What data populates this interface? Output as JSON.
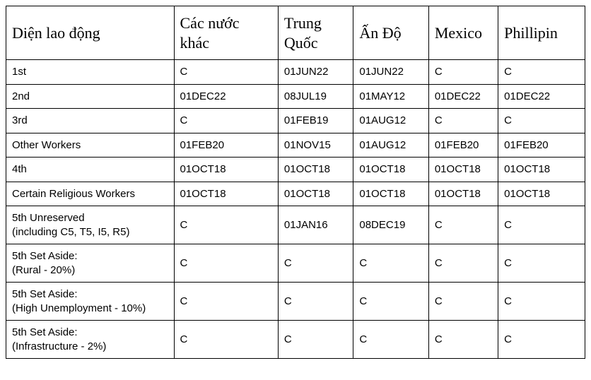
{
  "table": {
    "columns": [
      "Diện lao động",
      "Các nước khác",
      "Trung Quốc",
      "Ấn Độ",
      "Mexico",
      "Phillipin"
    ],
    "rows": [
      [
        "1st",
        "C",
        "01JUN22",
        "01JUN22",
        "C",
        "C"
      ],
      [
        "2nd",
        "01DEC22",
        "08JUL19",
        "01MAY12",
        "01DEC22",
        "01DEC22"
      ],
      [
        "3rd",
        "C",
        "01FEB19",
        "01AUG12",
        "C",
        "C"
      ],
      [
        "Other Workers",
        "01FEB20",
        "01NOV15",
        "01AUG12",
        "01FEB20",
        "01FEB20"
      ],
      [
        "4th",
        "01OCT18",
        "01OCT18",
        "01OCT18",
        "01OCT18",
        "01OCT18"
      ],
      [
        "Certain Religious Workers",
        "01OCT18",
        "01OCT18",
        "01OCT18",
        "01OCT18",
        "01OCT18"
      ],
      [
        "5th Unreserved\n(including C5, T5, I5, R5)",
        "C",
        "01JAN16",
        "08DEC19",
        "C",
        "C"
      ],
      [
        "5th Set Aside:\n(Rural - 20%)",
        "C",
        "C",
        "C",
        "C",
        "C"
      ],
      [
        "5th Set Aside:\n(High Unemployment - 10%)",
        "C",
        "C",
        "C",
        "C",
        "C"
      ],
      [
        "5th Set Aside:\n(Infrastructure - 2%)",
        "C",
        "C",
        "C",
        "C",
        "C"
      ]
    ],
    "styles": {
      "header_fontsize": 22,
      "body_fontsize": 15,
      "border_color": "#000000",
      "background_color": "#ffffff",
      "header_font": "serif",
      "body_font": "sans-serif"
    }
  }
}
